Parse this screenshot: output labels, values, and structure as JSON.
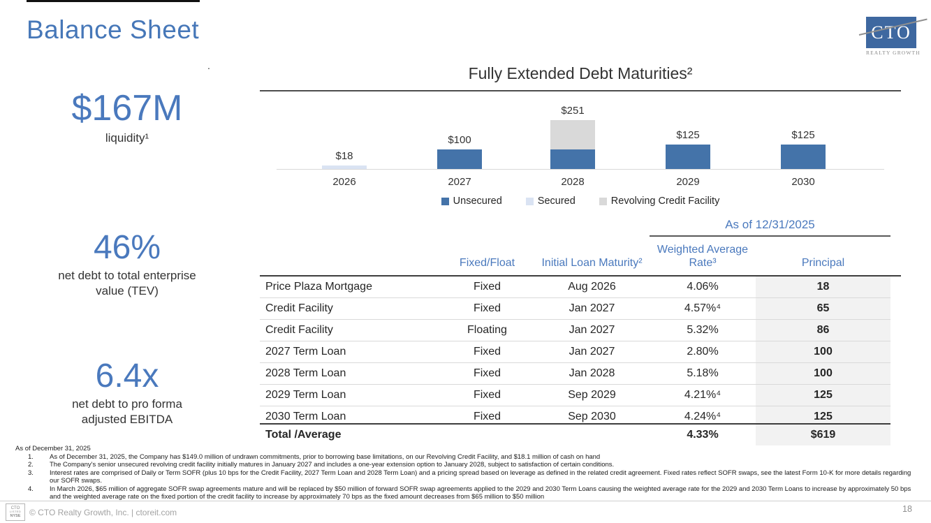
{
  "slide": {
    "title": "Balance Sheet"
  },
  "logo": {
    "text": "CTO",
    "subtext": "REALTY GROWTH"
  },
  "metrics": [
    {
      "value": "$167M",
      "label": "liquidity¹"
    },
    {
      "value": "46%",
      "label": "net debt to total enterprise\nvalue (TEV)"
    },
    {
      "value": "6.4x",
      "label": "net debt to pro forma\nadjusted EBITDA"
    }
  ],
  "chart_data": {
    "type": "bar",
    "stacked": true,
    "title": "Fully Extended Debt Maturities²",
    "categories": [
      "2026",
      "2027",
      "2028",
      "2029",
      "2030"
    ],
    "series": [
      {
        "name": "Unsecured",
        "color": "#4473a9",
        "values": [
          0,
          100,
          100,
          125,
          125
        ]
      },
      {
        "name": "Secured",
        "color": "#dae3f3",
        "values": [
          18,
          0,
          0,
          0,
          0
        ]
      },
      {
        "name": "Revolving Credit Facility",
        "color": "#d9d9d9",
        "values": [
          0,
          0,
          151,
          0,
          0
        ]
      }
    ],
    "bar_labels": [
      "$18",
      "$100",
      "$251",
      "$125",
      "$125"
    ],
    "ylim": [
      0,
      280
    ],
    "legend_position": "bottom",
    "axis": "hidden"
  },
  "table": {
    "as_of_label": "As of 12/31/2025",
    "headers": {
      "name": "",
      "fixed_float": "Fixed/Float",
      "maturity": "Initial Loan Maturity²",
      "rate": "Weighted Average Rate³",
      "principal": "Principal"
    },
    "rows": [
      {
        "name": "Price Plaza Mortgage",
        "fixed_float": "Fixed",
        "maturity": "Aug 2026",
        "rate": "4.06%",
        "principal": "18"
      },
      {
        "name": "Credit Facility",
        "fixed_float": "Fixed",
        "maturity": "Jan 2027",
        "rate": "4.57%⁴",
        "principal": "65"
      },
      {
        "name": "Credit Facility",
        "fixed_float": "Floating",
        "maturity": "Jan 2027",
        "rate": "5.32%",
        "principal": "86"
      },
      {
        "name": "2027 Term Loan",
        "fixed_float": "Fixed",
        "maturity": "Jan 2027",
        "rate": "2.80%",
        "principal": "100"
      },
      {
        "name": "2028 Term Loan",
        "fixed_float": "Fixed",
        "maturity": "Jan 2028",
        "rate": "5.18%",
        "principal": "100"
      },
      {
        "name": "2029 Term Loan",
        "fixed_float": "Fixed",
        "maturity": "Sep 2029",
        "rate": "4.21%⁴",
        "principal": "125"
      },
      {
        "name": "2030 Term Loan",
        "fixed_float": "Fixed",
        "maturity": "Sep 2030",
        "rate": "4.24%⁴",
        "principal": "125"
      }
    ],
    "total": {
      "name": "Total /Average",
      "fixed_float": "",
      "maturity": "",
      "rate": "4.33%",
      "principal": "$619"
    }
  },
  "footnotes": {
    "heading": "As of December 31, 2025",
    "items": [
      "As of December 31, 2025, the Company has $149.0 million of undrawn commitments, prior to borrowing base limitations, on our Revolving Credit Facility, and $18.1 million of cash on hand",
      "The Company's senior unsecured revolving credit facility initially matures in January 2027 and includes a one-year extension option to January 2028, subject to satisfaction of certain conditions.",
      "Interest rates are comprised of Daily or Term SOFR (plus 10 bps for the Credit Facility, 2027 Term Loan and 2028 Term Loan) and a pricing spread based on leverage as defined in the related credit agreement.  Fixed rates reflect SOFR swaps, see the latest Form 10-K for more details regarding our SOFR swaps.",
      "In March 2026, $65 million of aggregate SOFR swap agreements mature and will be replaced by $50 million of forward SOFR swap agreements applied to the 2029 and 2030 Term Loans causing the weighted average rate for the 2029 and 2030 Term Loans to increase by approximately 50 bps and the weighted average rate on the fixed portion of the credit facility to increase by approximately 70 bps as the fixed amount decreases from $65 million to $50 million"
    ]
  },
  "footer": {
    "badge_lines": [
      "CTO",
      "LISTED",
      "NYSE"
    ],
    "copyright": "© CTO Realty Growth, Inc. | ctoreit.com",
    "page_number": "18"
  },
  "colors": {
    "accent_blue": "#4a79bd",
    "bar_unsecured": "#4473a9",
    "bar_secured": "#dae3f3",
    "bar_revolving": "#d9d9d9",
    "logo_blue": "#3e68a0"
  }
}
